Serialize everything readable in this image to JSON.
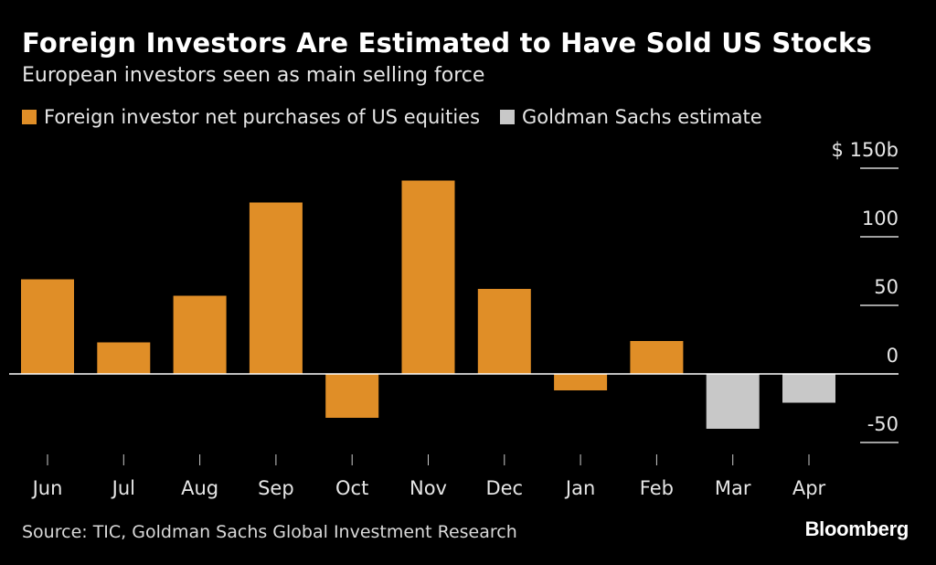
{
  "title": "Foreign Investors Are Estimated to Have Sold US Stocks",
  "subtitle": "European investors seen as main selling force",
  "legend": [
    {
      "label": "Foreign investor net purchases of US equities",
      "color": "#e08e27"
    },
    {
      "label": "Goldman Sachs estimate",
      "color": "#c8c8c8"
    }
  ],
  "source": "Source: TIC, Goldman Sachs Global Investment Research",
  "brand": "Bloomberg",
  "chart_data": {
    "type": "bar",
    "categories": [
      "Jun",
      "Jul",
      "Aug",
      "Sep",
      "Oct",
      "Nov",
      "Dec",
      "Jan",
      "Feb",
      "Mar",
      "Apr"
    ],
    "values": [
      69,
      23,
      57,
      125,
      -32,
      141,
      62,
      -12,
      24,
      -40,
      -21
    ],
    "series_index": [
      0,
      0,
      0,
      0,
      0,
      0,
      0,
      0,
      0,
      1,
      1
    ],
    "ylim": [
      -50,
      150
    ],
    "y_ticks": [
      150,
      100,
      50,
      0,
      -50
    ],
    "y_tick_labels": [
      "$ 150b",
      "100",
      "50",
      "0",
      "-50"
    ],
    "grid": false
  }
}
